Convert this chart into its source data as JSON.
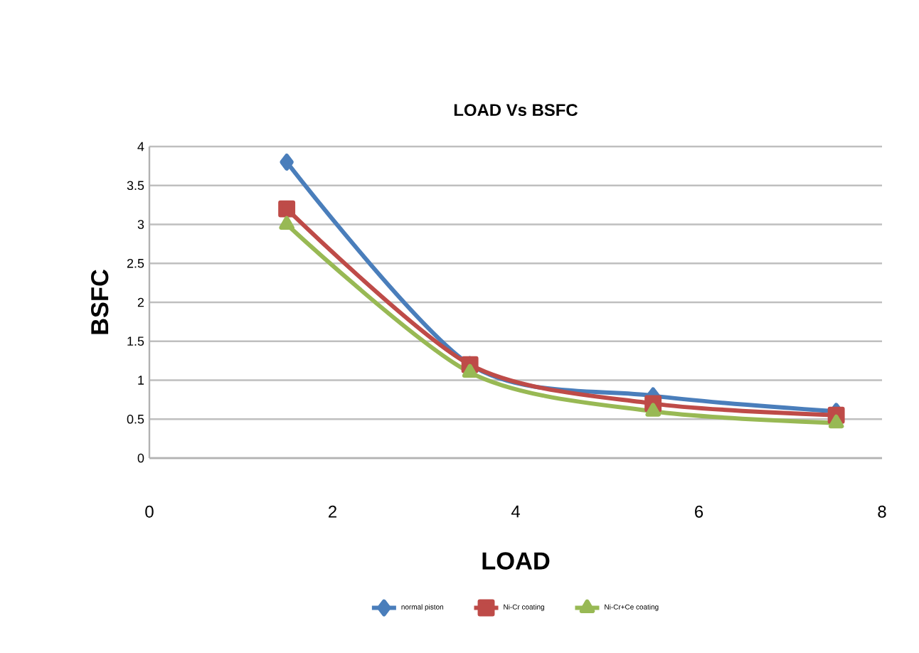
{
  "chart_data": {
    "type": "line",
    "title": "LOAD Vs BSFC",
    "xlabel": "LOAD",
    "ylabel": "BSFC",
    "xlim": [
      0,
      8
    ],
    "xticks": [
      0,
      2,
      4,
      6,
      8
    ],
    "ylim": [
      0,
      4
    ],
    "yticks": [
      0,
      0.5,
      1,
      1.5,
      2,
      2.5,
      3,
      3.5,
      4
    ],
    "x": [
      1.5,
      3.5,
      5.5,
      7.5
    ],
    "grid": "y",
    "legend": "bottom",
    "series": [
      {
        "name": "normal piston",
        "color": "#4a7ebb",
        "marker": "diamond",
        "values": [
          3.8,
          1.2,
          0.8,
          0.6
        ]
      },
      {
        "name": "Ni-Cr coating",
        "color": "#be4b48",
        "marker": "square",
        "values": [
          3.2,
          1.2,
          0.7,
          0.55
        ]
      },
      {
        "name": "Ni-Cr+Ce coating",
        "color": "#98b954",
        "marker": "triangle",
        "values": [
          3.0,
          1.1,
          0.6,
          0.45
        ]
      }
    ]
  }
}
